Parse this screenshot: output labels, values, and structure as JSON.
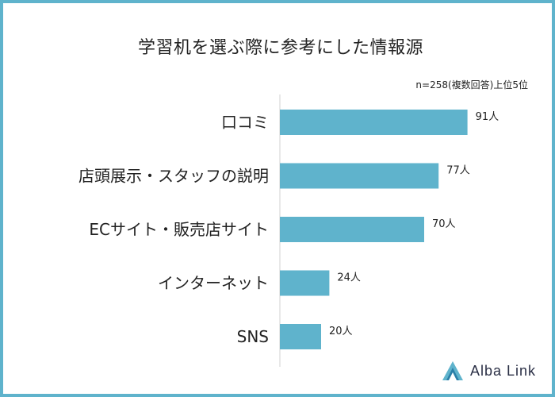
{
  "header": {
    "title": "学習机を選ぶ際に参考にした情報源",
    "note": "n=258(複数回答)上位5位"
  },
  "chart_data": {
    "type": "bar",
    "orientation": "horizontal",
    "title": "学習机を選ぶ際に参考にした情報源",
    "categories": [
      "口コミ",
      "店頭展示・スタッフの説明",
      "ECサイト・販売店サイト",
      "インターネット",
      "SNS"
    ],
    "values": [
      91,
      77,
      70,
      24,
      20
    ],
    "data_labels": [
      "91人",
      "77人",
      "70人",
      "24人",
      "20人"
    ],
    "unit": "人",
    "xlim": [
      0,
      100
    ],
    "grid": false,
    "bar_color": "#5fb3cc"
  },
  "branding": {
    "logo_text": "Alba Link"
  },
  "colors": {
    "frame": "#5fb3cc",
    "bar": "#5fb3cc",
    "axis": "#d0d0d0",
    "text": "#222222"
  }
}
